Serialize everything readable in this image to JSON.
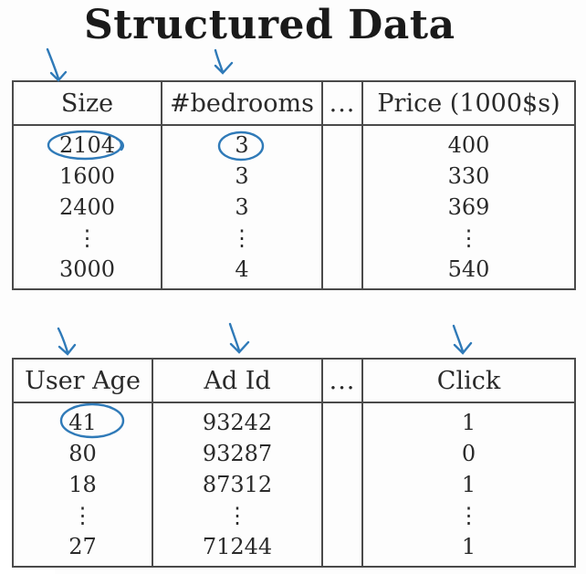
{
  "title": "Structured Data",
  "housing_table": {
    "headers": [
      "Size",
      "#bedrooms",
      "...",
      "Price (1000$s)"
    ],
    "rows": [
      [
        "2104",
        "3",
        "",
        "400"
      ],
      [
        "1600",
        "3",
        "",
        "330"
      ],
      [
        "2400",
        "3",
        "",
        "369"
      ],
      [
        "⋮",
        "⋮",
        "",
        "⋮"
      ],
      [
        "3000",
        "4",
        "",
        "540"
      ]
    ]
  },
  "ads_table": {
    "headers": [
      "User Age",
      "Ad Id",
      "...",
      "Click"
    ],
    "rows": [
      [
        "41",
        "93242",
        "",
        "1"
      ],
      [
        "80",
        "93287",
        "",
        "0"
      ],
      [
        "18",
        "87312",
        "",
        "1"
      ],
      [
        "⋮",
        "⋮",
        "",
        "⋮"
      ],
      [
        "27",
        "71244",
        "",
        "1"
      ]
    ]
  },
  "annotation_color": "#2f7ab8"
}
